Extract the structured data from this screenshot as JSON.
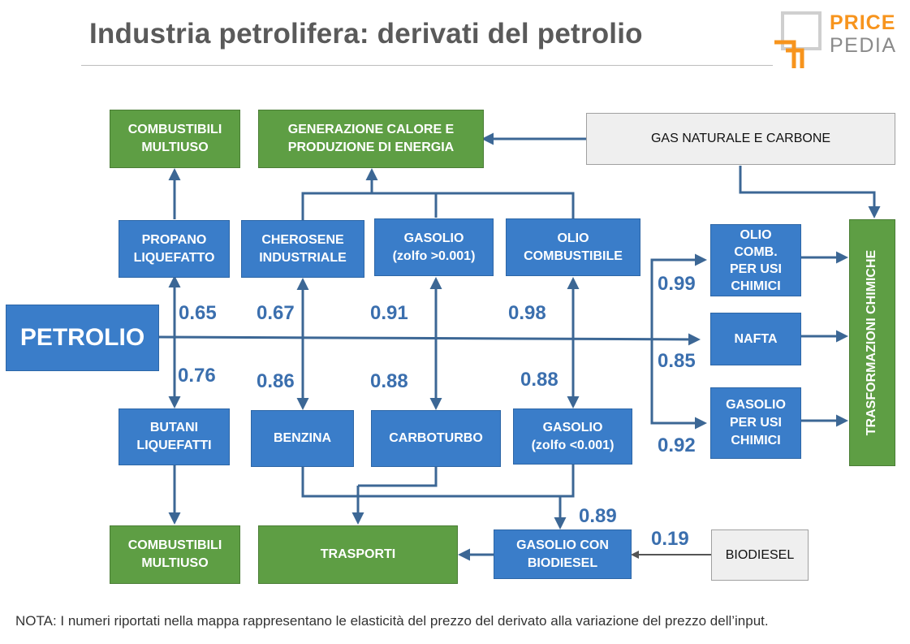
{
  "title": "Industria petrolifera: derivati del petrolio",
  "logo": {
    "line1": "PRICE",
    "line2": "PEDIA",
    "colors": {
      "orange": "#f7941d",
      "grey": "#8a8a8a"
    }
  },
  "colors": {
    "green": "#5e9e44",
    "blue": "#3a7dc9",
    "grey_box": "#efefef",
    "arrow": "#3c6795",
    "number": "#3b6fae"
  },
  "nodes": {
    "combustibili_multiuso_top": "COMBUSTIBILI\nMULTIUSO",
    "generazione": "GENERAZIONE CALORE E\nPRODUZIONE DI ENERGIA",
    "gas_naturale": "GAS NATURALE E CARBONE",
    "propano": "PROPANO\nLIQUEFATTO",
    "cherosene": "CHEROSENE\nINDUSTRIALE",
    "gasolio_high": "GASOLIO\n(zolfo >0.001)",
    "olio_combustibile": "OLIO\nCOMBUSTIBILE",
    "olio_comb_chimici": "OLIO\nCOMB.\nPER USI\nCHIMICI",
    "petrolio": "PETROLIO",
    "nafta": "NAFTA",
    "gasolio_chimici": "GASOLIO\nPER USI\nCHIMICI",
    "trasformazioni": "TRASFORMAZIONI CHIMICHE",
    "butani": "BUTANI\nLIQUEFATTI",
    "benzina": "BENZINA",
    "carboturbo": "CARBOTURBO",
    "gasolio_low": "GASOLIO\n(zolfo <0.001)",
    "combustibili_multiuso_bottom": "COMBUSTIBILI\nMULTIUSO",
    "trasporti": "TRASPORTI",
    "gasolio_biodiesel": "GASOLIO CON\nBIODIESEL",
    "biodiesel": "BIODIESEL"
  },
  "elasticities": {
    "propano": "0.65",
    "cherosene": "0.67",
    "gasolio_high": "0.91",
    "olio_combustibile": "0.98",
    "butani": "0.76",
    "benzina": "0.86",
    "carboturbo": "0.88",
    "gasolio_low": "0.88",
    "olio_comb_chimici": "0.99",
    "nafta": "0.85",
    "gasolio_chimici": "0.92",
    "gasolio_biodiesel": "0.89",
    "biodiesel": "0.19"
  },
  "note": "NOTA: I numeri riportati nella mappa rappresentano le elasticità del prezzo del derivato alla variazione del prezzo dell’input."
}
